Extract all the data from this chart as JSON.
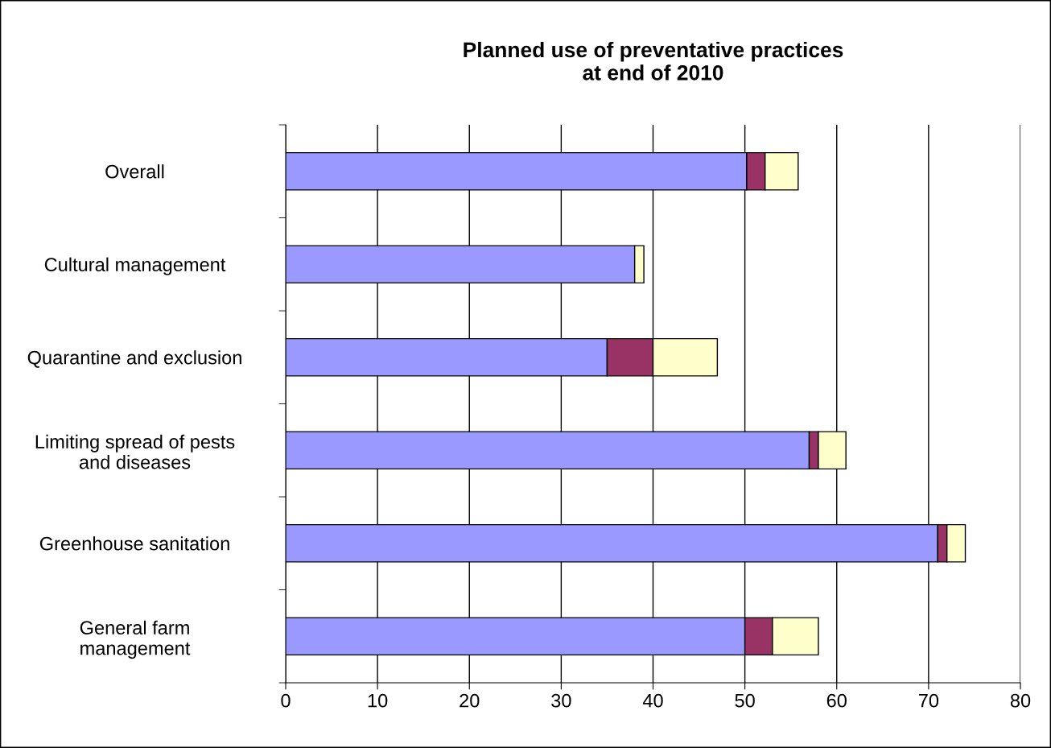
{
  "chart_data": {
    "type": "bar",
    "orientation": "horizontal",
    "stacked": true,
    "title": "Planned use of preventative practices\nat end of 2010",
    "categories": [
      "Overall",
      "Cultural management",
      "Quarantine and exclusion",
      "Limiting spread of pests\nand diseases",
      "Greenhouse sanitation",
      "General farm\nmanagement"
    ],
    "series": [
      {
        "color": "#9999ff",
        "values": [
          50.2,
          38,
          35,
          57,
          71,
          50
        ]
      },
      {
        "color": "#993366",
        "values": [
          2,
          0,
          5,
          1,
          1,
          3
        ]
      },
      {
        "color": "#ffffcc",
        "values": [
          3.6,
          1,
          7,
          3,
          2,
          5
        ]
      }
    ],
    "xlim": [
      0,
      80
    ],
    "xticks": [
      0,
      10,
      20,
      30,
      40,
      50,
      60,
      70,
      80
    ],
    "grid": "x",
    "legend": false
  }
}
